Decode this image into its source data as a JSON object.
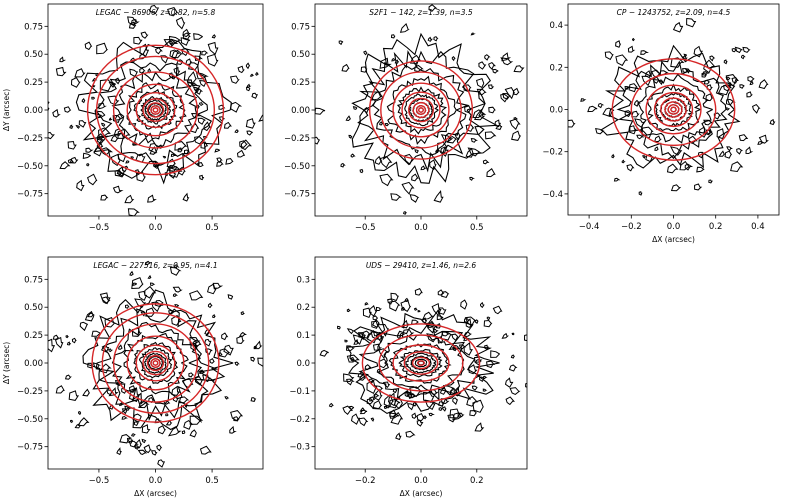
{
  "figure": {
    "description_colors": {
      "contour": "#000000",
      "model": "#d62728",
      "frame": "#000000"
    }
  },
  "chart_data": [
    {
      "type": "contour",
      "title": "LEGAC − 86906, z=0.82, n=5.8",
      "xlabel": "",
      "ylabel": "ΔY (arcsec)",
      "xlim": [
        -0.95,
        0.95
      ],
      "ylim": [
        -0.95,
        0.95
      ],
      "xticks": [
        -0.5,
        0.0,
        0.5
      ],
      "xtick_labels": [
        "−0.5",
        "0.0",
        "0.5"
      ],
      "yticks": [
        -0.75,
        -0.5,
        -0.25,
        0.0,
        0.25,
        0.5,
        0.75
      ],
      "ytick_labels": [
        "−0.75",
        "−0.50",
        "−0.25",
        "0.00",
        "0.25",
        "0.50",
        "0.75"
      ],
      "center": [
        0.0,
        0.0
      ],
      "data_contour_radii": [
        0.02,
        0.04,
        0.06,
        0.09,
        0.12,
        0.17,
        0.24,
        0.33,
        0.45,
        0.6
      ],
      "model_ellipses": [
        {
          "a": 0.02,
          "b": 0.018
        },
        {
          "a": 0.04,
          "b": 0.036
        },
        {
          "a": 0.07,
          "b": 0.063
        },
        {
          "a": 0.11,
          "b": 0.1
        },
        {
          "a": 0.17,
          "b": 0.155
        },
        {
          "a": 0.25,
          "b": 0.23
        },
        {
          "a": 0.37,
          "b": 0.34
        },
        {
          "a": 0.52,
          "b": 0.48
        },
        {
          "a": 0.6,
          "b": 0.58
        }
      ],
      "axis_ratio": 0.95,
      "noise": 1.0
    },
    {
      "type": "contour",
      "title": "S2F1 − 142, z=1.39, n=3.5",
      "xlabel": "",
      "ylabel": "",
      "xlim": [
        -0.95,
        0.95
      ],
      "ylim": [
        -0.95,
        0.95
      ],
      "xticks": [
        -0.5,
        0.0,
        0.5
      ],
      "xtick_labels": [
        "−0.5",
        "0.0",
        "0.5"
      ],
      "yticks": [
        -0.75,
        -0.5,
        -0.25,
        0.0,
        0.25,
        0.5,
        0.75
      ],
      "ytick_labels": [
        "−0.75",
        "−0.50",
        "−0.25",
        "0.00",
        "0.25",
        "0.50",
        "0.75"
      ],
      "center": [
        0.0,
        0.0
      ],
      "data_contour_radii": [
        0.02,
        0.04,
        0.07,
        0.1,
        0.14,
        0.2,
        0.28,
        0.38,
        0.5,
        0.6
      ],
      "model_ellipses": [
        {
          "a": 0.02,
          "b": 0.019
        },
        {
          "a": 0.04,
          "b": 0.038
        },
        {
          "a": 0.07,
          "b": 0.066
        },
        {
          "a": 0.11,
          "b": 0.104
        },
        {
          "a": 0.17,
          "b": 0.16
        },
        {
          "a": 0.25,
          "b": 0.24
        },
        {
          "a": 0.36,
          "b": 0.34
        },
        {
          "a": 0.46,
          "b": 0.44
        }
      ],
      "axis_ratio": 0.95,
      "noise": 0.5
    },
    {
      "type": "contour",
      "title": "CP − 1243752, z=2.09, n=4.5",
      "xlabel": "ΔX (arcsec)",
      "ylabel": "",
      "xlim": [
        -0.5,
        0.5
      ],
      "ylim": [
        -0.5,
        0.5
      ],
      "xticks": [
        -0.4,
        -0.2,
        0.0,
        0.2,
        0.4
      ],
      "xtick_labels": [
        "−0.4",
        "−0.2",
        "0.0",
        "0.2",
        "0.4"
      ],
      "yticks": [
        -0.4,
        -0.2,
        0.0,
        0.2,
        0.4
      ],
      "ytick_labels": [
        "−0.4",
        "−0.2",
        "0.0",
        "0.2",
        "0.4"
      ],
      "center": [
        0.0,
        0.0
      ],
      "data_contour_radii": [
        0.012,
        0.025,
        0.04,
        0.06,
        0.085,
        0.12,
        0.17,
        0.23,
        0.3
      ],
      "model_ellipses": [
        {
          "a": 0.012,
          "b": 0.011
        },
        {
          "a": 0.025,
          "b": 0.022
        },
        {
          "a": 0.04,
          "b": 0.036
        },
        {
          "a": 0.06,
          "b": 0.054
        },
        {
          "a": 0.09,
          "b": 0.08
        },
        {
          "a": 0.13,
          "b": 0.115
        },
        {
          "a": 0.2,
          "b": 0.17
        },
        {
          "a": 0.29,
          "b": 0.24
        }
      ],
      "axis_ratio": 0.86,
      "noise": 0.6
    },
    {
      "type": "contour",
      "title": "LEGAC − 227516, z=0.95, n=4.1",
      "xlabel": "ΔX (arcsec)",
      "ylabel": "ΔY (arcsec)",
      "xlim": [
        -0.95,
        0.95
      ],
      "ylim": [
        -0.95,
        0.95
      ],
      "xticks": [
        -0.5,
        0.0,
        0.5
      ],
      "xtick_labels": [
        "−0.5",
        "0.0",
        "0.5"
      ],
      "yticks": [
        -0.75,
        -0.5,
        -0.25,
        0.0,
        0.25,
        0.5,
        0.75
      ],
      "ytick_labels": [
        "−0.75",
        "−0.50",
        "−0.25",
        "0.00",
        "0.25",
        "0.50",
        "0.75"
      ],
      "center": [
        0.0,
        0.0
      ],
      "data_contour_radii": [
        0.02,
        0.04,
        0.06,
        0.09,
        0.13,
        0.18,
        0.26,
        0.35,
        0.46,
        0.58
      ],
      "model_ellipses": [
        {
          "a": 0.02,
          "b": 0.019
        },
        {
          "a": 0.04,
          "b": 0.038
        },
        {
          "a": 0.07,
          "b": 0.066
        },
        {
          "a": 0.11,
          "b": 0.104
        },
        {
          "a": 0.17,
          "b": 0.16
        },
        {
          "a": 0.25,
          "b": 0.24
        },
        {
          "a": 0.37,
          "b": 0.35
        },
        {
          "a": 0.47,
          "b": 0.45
        },
        {
          "a": 0.56,
          "b": 0.53
        }
      ],
      "axis_ratio": 0.95,
      "noise": 0.8
    },
    {
      "type": "contour",
      "title": "UDS − 29410, z=1.46, n=2.6",
      "xlabel": "ΔX (arcsec)",
      "ylabel": "",
      "xlim": [
        -0.38,
        0.38
      ],
      "ylim": [
        -0.38,
        0.38
      ],
      "xticks": [
        -0.2,
        0.0,
        0.2
      ],
      "xtick_labels": [
        "−0.2",
        "0.0",
        "0.2"
      ],
      "yticks": [
        -0.3,
        -0.2,
        -0.1,
        0.0,
        0.1,
        0.2,
        0.3
      ],
      "ytick_labels": [
        "−0.3",
        "−0.2",
        "−0.1",
        "0.0",
        "0.1",
        "0.2",
        "0.3"
      ],
      "center": [
        0.0,
        0.0
      ],
      "data_contour_radii": [
        0.01,
        0.02,
        0.035,
        0.05,
        0.07,
        0.1,
        0.14,
        0.19,
        0.25
      ],
      "model_ellipses": [
        {
          "a": 0.012,
          "b": 0.008
        },
        {
          "a": 0.03,
          "b": 0.02
        },
        {
          "a": 0.06,
          "b": 0.04
        },
        {
          "a": 0.1,
          "b": 0.065
        },
        {
          "a": 0.15,
          "b": 0.1
        },
        {
          "a": 0.21,
          "b": 0.14
        }
      ],
      "axis_ratio": 0.66,
      "noise": 1.0
    }
  ]
}
